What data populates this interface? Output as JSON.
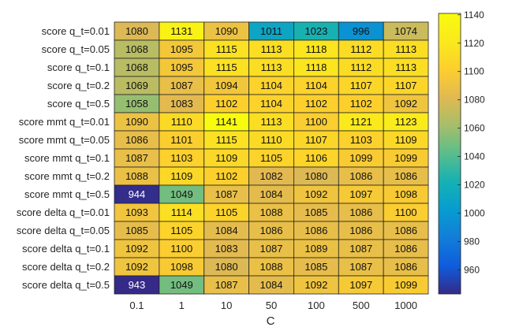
{
  "chart_data": {
    "type": "heatmap",
    "xlabel": "C",
    "x_categories": [
      "0.1",
      "1",
      "10",
      "50",
      "100",
      "500",
      "1000"
    ],
    "y_categories": [
      "score q_t=0.01",
      "score q_t=0.05",
      "score q_t=0.1",
      "score q_t=0.2",
      "score q_t=0.5",
      "score mmt q_t=0.01",
      "score mmt q_t=0.05",
      "score mmt q_t=0.1",
      "score mmt q_t=0.2",
      "score mmt q_t=0.5",
      "score delta q_t=0.01",
      "score delta q_t=0.05",
      "score delta q_t=0.1",
      "score delta q_t=0.2",
      "score delta q_t=0.5"
    ],
    "values": [
      [
        1080,
        1131,
        1090,
        1011,
        1023,
        996,
        1074
      ],
      [
        1068,
        1095,
        1115,
        1113,
        1118,
        1112,
        1113
      ],
      [
        1068,
        1095,
        1115,
        1113,
        1118,
        1112,
        1113
      ],
      [
        1069,
        1087,
        1094,
        1104,
        1104,
        1107,
        1107
      ],
      [
        1058,
        1083,
        1102,
        1104,
        1102,
        1102,
        1092
      ],
      [
        1090,
        1110,
        1141,
        1113,
        1100,
        1121,
        1123
      ],
      [
        1086,
        1101,
        1115,
        1110,
        1107,
        1103,
        1109
      ],
      [
        1087,
        1103,
        1109,
        1105,
        1106,
        1099,
        1099
      ],
      [
        1088,
        1109,
        1102,
        1082,
        1080,
        1086,
        1086
      ],
      [
        944,
        1049,
        1087,
        1084,
        1092,
        1097,
        1098
      ],
      [
        1093,
        1114,
        1105,
        1088,
        1085,
        1086,
        1100
      ],
      [
        1085,
        1105,
        1084,
        1086,
        1086,
        1086,
        1086
      ],
      [
        1092,
        1100,
        1083,
        1087,
        1089,
        1087,
        1086
      ],
      [
        1092,
        1098,
        1080,
        1088,
        1085,
        1087,
        1086
      ],
      [
        943,
        1049,
        1087,
        1084,
        1092,
        1097,
        1099
      ]
    ],
    "colormap": "parula",
    "clim": [
      943,
      1141
    ],
    "colorbar_ticks": [
      960,
      980,
      1000,
      1020,
      1040,
      1060,
      1080,
      1100,
      1120,
      1140
    ],
    "grid": true
  }
}
